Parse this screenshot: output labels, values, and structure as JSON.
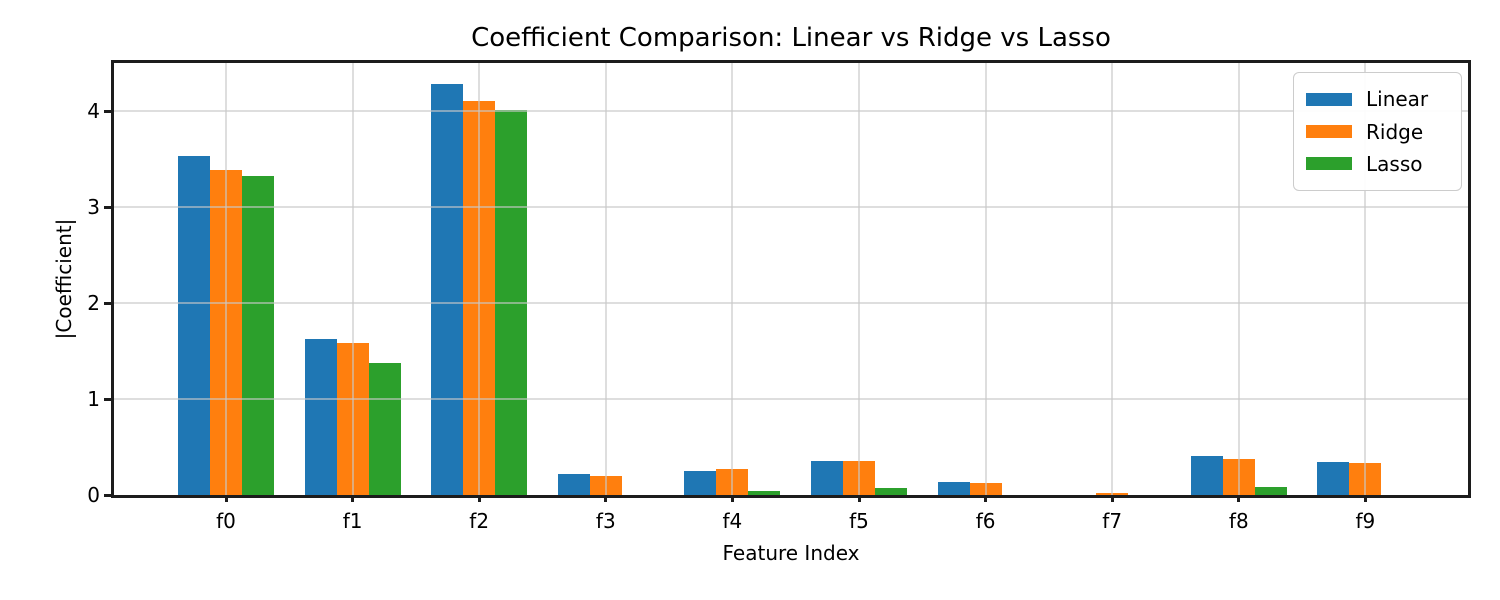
{
  "chart_data": {
    "type": "bar",
    "title": "Coefficient Comparison: Linear vs Ridge vs Lasso",
    "xlabel": "Feature Index",
    "ylabel": "|Coefficient|",
    "categories": [
      "f0",
      "f1",
      "f2",
      "f3",
      "f4",
      "f5",
      "f6",
      "f7",
      "f8",
      "f9"
    ],
    "series": [
      {
        "name": "Linear",
        "color": "#1f77b4",
        "values": [
          3.53,
          1.63,
          4.28,
          0.22,
          0.25,
          0.35,
          0.14,
          0.0,
          0.41,
          0.34
        ]
      },
      {
        "name": "Ridge",
        "color": "#ff7f0e",
        "values": [
          3.39,
          1.58,
          4.1,
          0.2,
          0.27,
          0.35,
          0.13,
          0.02,
          0.38,
          0.33
        ]
      },
      {
        "name": "Lasso",
        "color": "#2ca02c",
        "values": [
          3.32,
          1.38,
          4.01,
          0.0,
          0.04,
          0.07,
          0.0,
          0.0,
          0.08,
          0.0
        ]
      }
    ],
    "ylim": [
      0,
      4.5
    ],
    "yticks": [
      0,
      1,
      2,
      3,
      4
    ],
    "grid": true,
    "grid_color": "#cccccc",
    "spine_color": "#1c1c1c",
    "background": "#ffffff",
    "legend": {
      "position": "upper right",
      "entries": [
        "Linear",
        "Ridge",
        "Lasso"
      ]
    }
  }
}
